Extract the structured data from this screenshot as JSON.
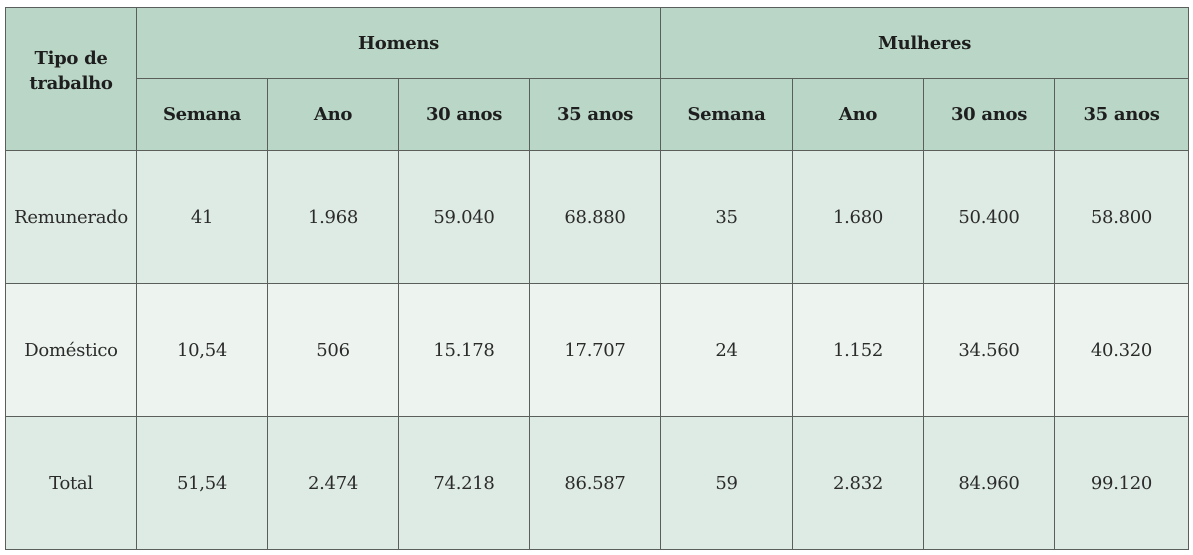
{
  "table": {
    "type_header_line1": "Tipo de",
    "type_header_line2": "trabalho",
    "groups": [
      "Homens",
      "Mulheres"
    ],
    "sub_headers": [
      "Semana",
      "Ano",
      "30 anos",
      "35 anos",
      "Semana",
      "Ano",
      "30 anos",
      "35 anos"
    ],
    "rows": [
      {
        "label": "Remunerado",
        "values": [
          "41",
          "1.968",
          "59.040",
          "68.880",
          "35",
          "1.680",
          "50.400",
          "58.800"
        ]
      },
      {
        "label": "Doméstico",
        "values": [
          "10,54",
          "506",
          "15.178",
          "17.707",
          "24",
          "1.152",
          "34.560",
          "40.320"
        ]
      },
      {
        "label": "Total",
        "values": [
          "51,54",
          "2.474",
          "74.218",
          "86.587",
          "59",
          "2.832",
          "84.960",
          "99.120"
        ]
      }
    ]
  },
  "colors": {
    "header_bg": "#b9d6c7",
    "row_bg_dark": "#deebe4",
    "row_bg_light": "#edf4ef",
    "border": "#5a5f5c"
  }
}
